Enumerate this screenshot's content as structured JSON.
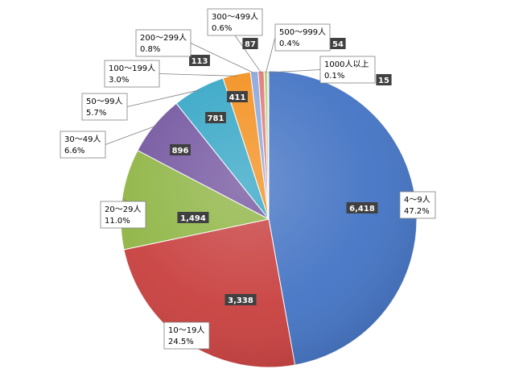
{
  "chart_data": {
    "type": "pie",
    "title": "",
    "legend": "none",
    "start_angle_deg": 0,
    "direction": "clockwise",
    "slices": [
      {
        "category": "4～9人",
        "value": 6418,
        "value_label": "6,418",
        "percent_label": "47.2%",
        "color": "#4474c4"
      },
      {
        "category": "10～19人",
        "value": 3338,
        "value_label": "3,338",
        "percent_label": "24.5%",
        "color": "#c8403f"
      },
      {
        "category": "20～29人",
        "value": 1494,
        "value_label": "1,494",
        "percent_label": "11.0%",
        "color": "#8fb545"
      },
      {
        "category": "30～49人",
        "value": 896,
        "value_label": "896",
        "percent_label": "6.6%",
        "color": "#7456a0"
      },
      {
        "category": "50～99人",
        "value": 781,
        "value_label": "781",
        "percent_label": "5.7%",
        "color": "#35a6c6"
      },
      {
        "category": "100～199人",
        "value": 411,
        "value_label": "411",
        "percent_label": "3.0%",
        "color": "#f3901f"
      },
      {
        "category": "200～299人",
        "value": 113,
        "value_label": "113",
        "percent_label": "0.8%",
        "color": "#8aa8dc"
      },
      {
        "category": "300～499人",
        "value": 87,
        "value_label": "87",
        "percent_label": "0.6%",
        "color": "#e07a79"
      },
      {
        "category": "500～999人",
        "value": 54,
        "value_label": "54",
        "percent_label": "0.4%",
        "color": "#b6d27e"
      },
      {
        "category": "1000人以上",
        "value": 15,
        "value_label": "15",
        "percent_label": "0.1%",
        "color": "#a48cc6"
      }
    ]
  }
}
